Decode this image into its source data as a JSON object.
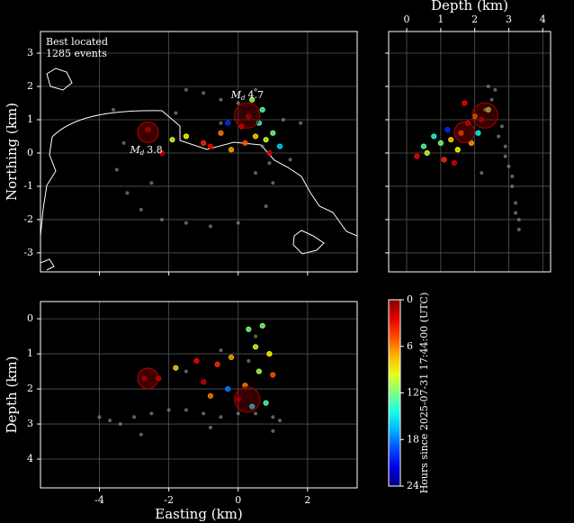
{
  "chart_data": [
    {
      "type": "scatter",
      "ylabel": "Northing (km)",
      "text": [
        "Best located",
        "1285 events"
      ],
      "xlim": [
        -5.7,
        3.43
      ],
      "ylim": [
        -3.57,
        3.65
      ],
      "xticks": [
        -4,
        -2,
        0,
        2
      ],
      "yticks": [
        -3,
        -2,
        -1,
        0,
        1,
        2,
        3
      ],
      "grid": true,
      "series": [
        {
          "color": "#8a8a8a",
          "x": [
            -3.5,
            -3.2,
            -2.8,
            -2.2,
            -1.5,
            -0.8,
            0,
            0.8,
            1.0,
            0.9,
            -1.5,
            -1,
            -0.5,
            0,
            0.5,
            1.3,
            1.8,
            -3.3,
            -3.6,
            -1.8,
            -0.5,
            0.7,
            0.5,
            -2.5,
            1.5
          ],
          "values": [
            -0.5,
            -1.2,
            -1.7,
            -2.0,
            -2.1,
            -2.2,
            -2.1,
            -1.6,
            -0.9,
            -0.3,
            1.9,
            1.8,
            1.6,
            1.5,
            1.9,
            1.0,
            0.9,
            0.3,
            1.3,
            1.2,
            0.9,
            0.2,
            -0.6,
            -0.9,
            -0.2
          ]
        },
        {
          "x": [
            0.3,
            0.1,
            0.5,
            0.8,
            0.6,
            -0.3,
            -0.5,
            -1,
            -1.5,
            -2.2,
            -2.6,
            1.0,
            0.7,
            0.2,
            -0.2,
            1.2,
            0.4,
            -0.8,
            -1.9,
            0.9
          ],
          "values": [
            1.1,
            0.8,
            0.5,
            0.4,
            0.9,
            0.9,
            0.6,
            0.3,
            0.5,
            0.0,
            0.7,
            0.6,
            1.3,
            0.3,
            0.1,
            0.2,
            1.6,
            0.2,
            0.4,
            0.0
          ],
          "hours": [
            1,
            3,
            8,
            10,
            14,
            20,
            6,
            4,
            9,
            2,
            1,
            12,
            13,
            5,
            7,
            16,
            11,
            3,
            10,
            2
          ]
        }
      ],
      "mainshocks": {
        "x": [
          0.26,
          -2.6
        ],
        "values": [
          1.13,
          0.62
        ],
        "hours": [
          0.5,
          1
        ],
        "magnitudes": [
          4.7,
          3.8
        ]
      },
      "magnitude_label": "M",
      "magnitude_subscript": "d"
    },
    {
      "type": "scatter",
      "xlabel": "Depth (km)",
      "xlim": [
        -0.53,
        4.23
      ],
      "ylim": [
        -3.57,
        3.65
      ],
      "xticks": [
        0,
        1,
        2,
        3,
        4
      ],
      "yticks": [
        -3,
        -2,
        -1,
        0,
        1,
        2,
        3
      ],
      "grid": true,
      "series": [
        {
          "color": "#8a8a8a",
          "x": [
            2.4,
            2.5,
            2.3,
            2.8,
            2.9,
            3.0,
            3.1,
            3.2,
            3.3,
            3.3,
            3.1,
            2.9,
            2.2,
            3.2,
            2.6,
            2.7
          ],
          "values": [
            2.0,
            1.6,
            1.3,
            0.8,
            0.2,
            -0.4,
            -1.0,
            -1.5,
            -2.0,
            -2.3,
            -0.7,
            -0.1,
            -0.6,
            -1.8,
            1.9,
            0.5
          ]
        },
        {
          "x": [
            0.3,
            0.6,
            1.0,
            1.3,
            1.6,
            1.8,
            2.0,
            2.2,
            1.5,
            1.1,
            0.8,
            1.9,
            2.4,
            1.7,
            1.2,
            0.5,
            2.1,
            1.4
          ],
          "values": [
            -0.1,
            0.0,
            0.3,
            0.4,
            0.6,
            0.9,
            1.1,
            1.0,
            0.1,
            -0.2,
            0.5,
            0.3,
            1.3,
            1.5,
            0.7,
            0.2,
            0.6,
            -0.3
          ],
          "hours": [
            3,
            10,
            12,
            8,
            5,
            2,
            6,
            1,
            9,
            4,
            14,
            7,
            11,
            3,
            20,
            13,
            15,
            2
          ]
        }
      ],
      "mainshocks": {
        "x": [
          2.3,
          1.7
        ],
        "values": [
          1.13,
          0.62
        ],
        "hours": [
          0.5,
          1
        ],
        "magnitudes": [
          4.7,
          3.8
        ]
      }
    },
    {
      "type": "scatter",
      "xlabel": "Easting (km)",
      "ylabel": "Depth (km)",
      "y_inverted": true,
      "xlim": [
        -5.7,
        3.43
      ],
      "ylim": [
        -0.49,
        4.82
      ],
      "xticks": [
        -4,
        -2,
        0,
        2
      ],
      "yticks": [
        0,
        1,
        2,
        3,
        4
      ],
      "grid": true,
      "series": [
        {
          "color": "#8a8a8a",
          "x": [
            -4.0,
            -3.7,
            -3.4,
            -3.0,
            -2.5,
            -2.0,
            -1.5,
            -1.0,
            -0.5,
            0,
            0.5,
            1.0,
            1.2,
            -1.5,
            -0.5,
            0.5,
            1.0,
            -2.8,
            0.3,
            -0.8
          ],
          "values": [
            2.8,
            2.9,
            3.0,
            2.8,
            2.7,
            2.6,
            2.6,
            2.7,
            2.8,
            2.7,
            2.7,
            2.8,
            2.9,
            1.5,
            0.9,
            0.5,
            3.2,
            3.3,
            1.2,
            3.1
          ]
        },
        {
          "x": [
            0.3,
            0.5,
            0.6,
            0.2,
            0,
            -0.3,
            -0.6,
            -1.2,
            -1.8,
            -2.3,
            -2.7,
            0.8,
            1.0,
            -0.2,
            0.9,
            -1.0,
            0.4,
            -0.8,
            0.7
          ],
          "values": [
            0.3,
            0.8,
            1.5,
            1.9,
            2.3,
            2.0,
            1.3,
            1.2,
            1.4,
            1.7,
            1.7,
            2.4,
            1.6,
            1.1,
            1.0,
            1.8,
            2.5,
            2.2,
            0.2
          ],
          "hours": [
            12,
            10,
            11,
            6,
            1,
            18,
            4,
            3,
            8,
            2,
            1,
            13,
            5,
            7,
            9,
            2,
            15,
            6,
            12
          ]
        }
      ],
      "mainshocks": {
        "x": [
          0.26,
          -2.6
        ],
        "values": [
          2.3,
          1.7
        ],
        "hours": [
          0.5,
          1
        ],
        "magnitudes": [
          4.7,
          3.8
        ]
      }
    },
    {
      "type": "colorbar",
      "label": "Hours since 2025-07-31 17:44:00 (UTC)",
      "ylim": [
        0,
        24
      ],
      "yticks": [
        0,
        6,
        12,
        18,
        24
      ],
      "colormap": "jet_r"
    }
  ]
}
